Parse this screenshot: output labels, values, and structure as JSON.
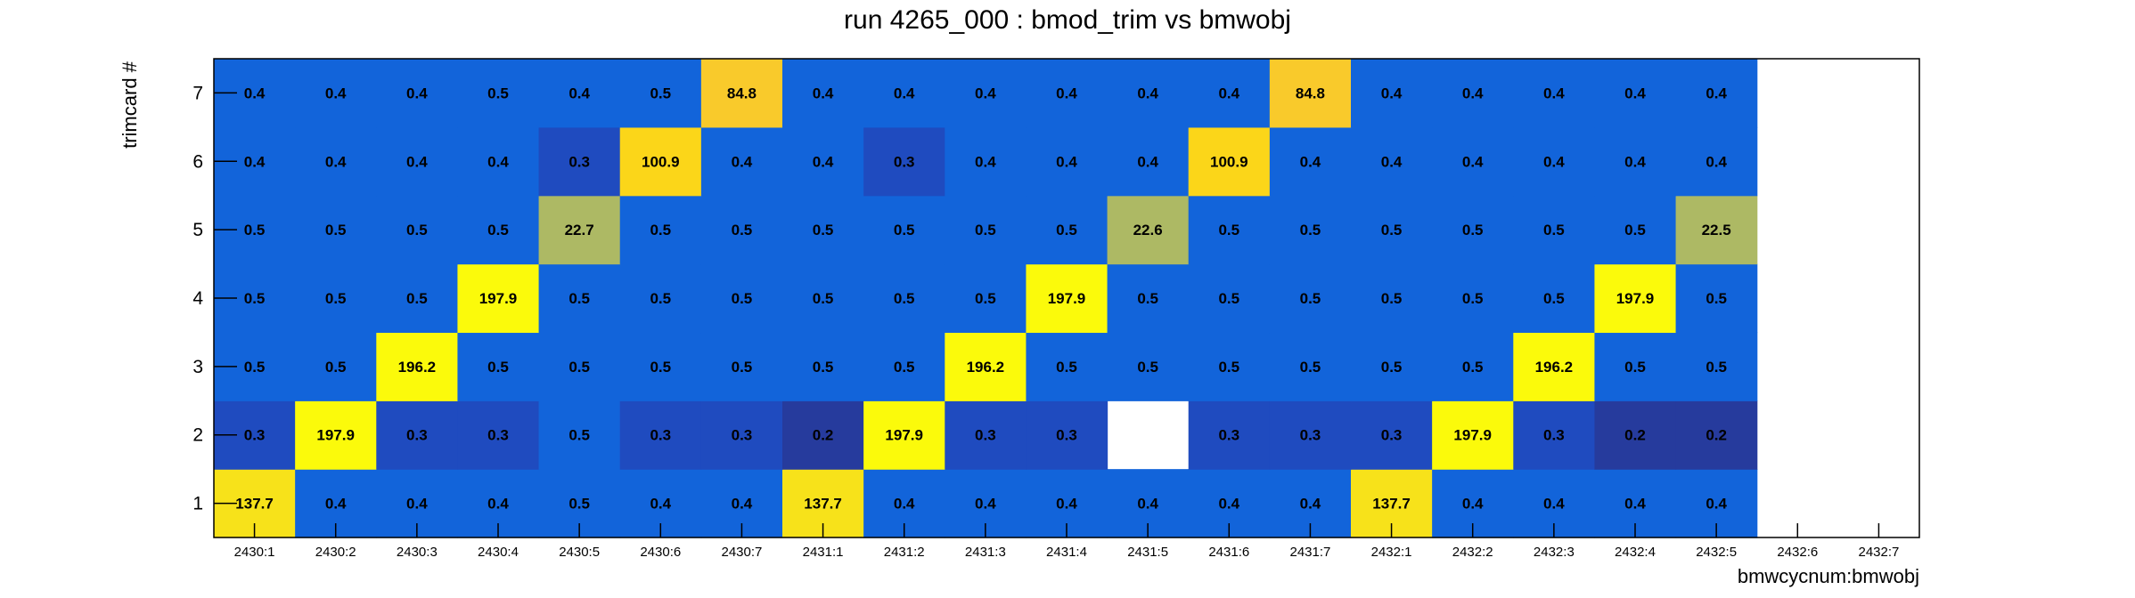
{
  "chart_data": {
    "type": "heatmap",
    "title": "run 4265_000 : bmod_trim vs bmwobj",
    "xlabel": "bmwcycnum:bmwobj",
    "ylabel": "trimcard #",
    "x_categories": [
      "2430:1",
      "2430:2",
      "2430:3",
      "2430:4",
      "2430:5",
      "2430:6",
      "2430:7",
      "2431:1",
      "2431:2",
      "2431:3",
      "2431:4",
      "2431:5",
      "2431:6",
      "2431:7",
      "2432:1",
      "2432:2",
      "2432:3",
      "2432:4",
      "2432:5",
      "2432:6",
      "2432:7"
    ],
    "y_categories": [
      "1",
      "2",
      "3",
      "4",
      "5",
      "6",
      "7"
    ],
    "rows": [
      {
        "y": "1",
        "values": [
          137.7,
          0.4,
          0.4,
          0.4,
          0.5,
          0.4,
          0.4,
          137.7,
          0.4,
          0.4,
          0.4,
          0.4,
          0.4,
          0.4,
          137.7,
          0.4,
          0.4,
          0.4,
          0.4,
          null,
          null
        ]
      },
      {
        "y": "2",
        "values": [
          0.3,
          197.9,
          0.3,
          0.3,
          0.5,
          0.3,
          0.3,
          0.2,
          197.9,
          0.3,
          0.3,
          null,
          0.3,
          0.3,
          0.3,
          197.9,
          0.3,
          0.2,
          0.2,
          null,
          null
        ]
      },
      {
        "y": "3",
        "values": [
          0.5,
          0.5,
          196.2,
          0.5,
          0.5,
          0.5,
          0.5,
          0.5,
          0.5,
          196.2,
          0.5,
          0.5,
          0.5,
          0.5,
          0.5,
          0.5,
          196.2,
          0.5,
          0.5,
          null,
          null
        ]
      },
      {
        "y": "4",
        "values": [
          0.5,
          0.5,
          0.5,
          197.9,
          0.5,
          0.5,
          0.5,
          0.5,
          0.5,
          0.5,
          197.9,
          0.5,
          0.5,
          0.5,
          0.5,
          0.5,
          0.5,
          197.9,
          0.5,
          null,
          null
        ]
      },
      {
        "y": "5",
        "values": [
          0.5,
          0.5,
          0.5,
          0.5,
          22.7,
          0.5,
          0.5,
          0.5,
          0.5,
          0.5,
          0.5,
          22.6,
          0.5,
          0.5,
          0.5,
          0.5,
          0.5,
          0.5,
          22.5,
          null,
          null
        ]
      },
      {
        "y": "6",
        "values": [
          0.4,
          0.4,
          0.4,
          0.4,
          0.3,
          100.9,
          0.4,
          0.4,
          0.3,
          0.4,
          0.4,
          0.4,
          100.9,
          0.4,
          0.4,
          0.4,
          0.4,
          0.4,
          0.4,
          null,
          null
        ]
      },
      {
        "y": "7",
        "values": [
          0.4,
          0.4,
          0.4,
          0.5,
          0.4,
          0.5,
          84.8,
          0.4,
          0.4,
          0.4,
          0.4,
          0.4,
          0.4,
          84.8,
          0.4,
          0.4,
          0.4,
          0.4,
          0.4,
          null,
          null
        ]
      }
    ],
    "grid": false,
    "colors": {
      "low_0_2": "#263b9d",
      "low_0_3": "#1f4bbf",
      "low_0_4": "#1264da",
      "mid_22": "#adb964",
      "mid_85": "#f9ca2b",
      "mid_100": "#fbd619",
      "high_137": "#f7e21a",
      "high_196": "#fbfa0b"
    }
  }
}
